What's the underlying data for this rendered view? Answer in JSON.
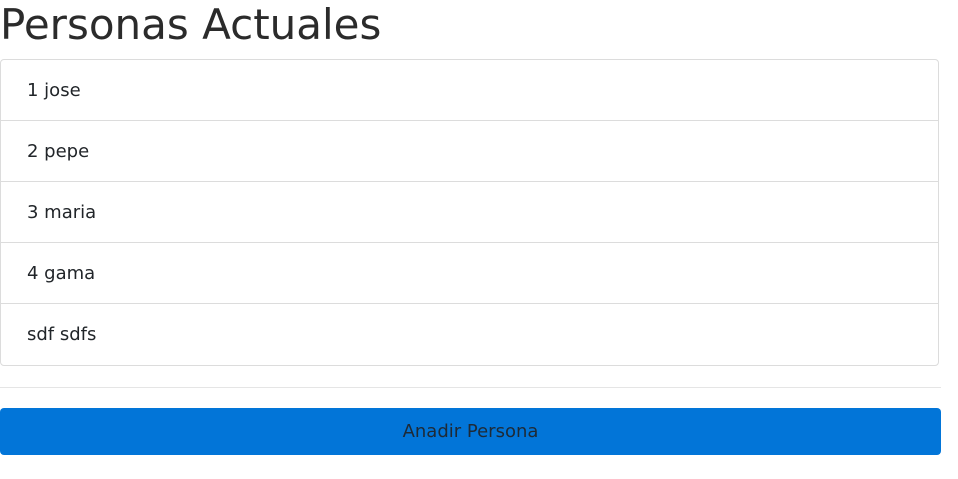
{
  "page": {
    "title": "Personas Actuales"
  },
  "personas": {
    "items": [
      {
        "label": "1 jose"
      },
      {
        "label": "2 pepe"
      },
      {
        "label": "3 maria"
      },
      {
        "label": "4 gama"
      },
      {
        "label": "sdf sdfs"
      }
    ]
  },
  "actions": {
    "add_label": "Anadir Persona",
    "add_color": "#0275d8"
  }
}
